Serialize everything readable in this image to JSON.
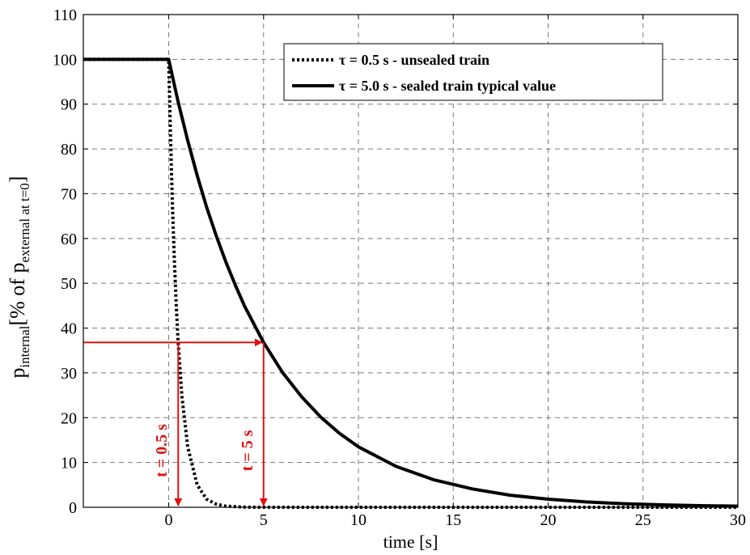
{
  "chart_data": {
    "type": "line",
    "xlabel": "time [s]",
    "ylabel": {
      "main": "p",
      "main_sub": "internal",
      "bracket": "[% of p",
      "bracket_sub": "external at t=0",
      "close": "]"
    },
    "xlim": [
      -4.5,
      30
    ],
    "ylim": [
      0,
      110
    ],
    "xticks": [
      0,
      5,
      10,
      15,
      20,
      25,
      30
    ],
    "yticks": [
      0,
      10,
      20,
      30,
      40,
      50,
      60,
      70,
      80,
      90,
      100,
      110
    ],
    "grid": true,
    "legend_position": "top-right",
    "series": [
      {
        "name": "τ = 0.5 s - unsealed train",
        "style": "dotted",
        "color": "#000000",
        "x": [
          -4.5,
          0,
          0.1,
          0.2,
          0.3,
          0.4,
          0.5,
          0.7,
          1.0,
          1.5,
          2.0,
          2.5,
          3.0,
          4.0,
          5.0,
          10.0,
          20.0,
          30.0
        ],
        "y": [
          100,
          100,
          81.9,
          67.0,
          54.9,
          44.9,
          36.8,
          24.7,
          13.5,
          5.0,
          1.8,
          0.7,
          0.25,
          0.03,
          0,
          0,
          0,
          0
        ]
      },
      {
        "name": "τ = 5.0 s - sealed train typical value",
        "style": "solid",
        "color": "#000000",
        "x": [
          -4.5,
          0,
          0.5,
          1,
          1.5,
          2,
          2.5,
          3,
          3.5,
          4,
          5,
          6,
          7,
          8,
          9,
          10,
          12,
          14,
          16,
          18,
          20,
          22,
          24,
          26,
          28,
          30
        ],
        "y": [
          100,
          100,
          90.5,
          81.9,
          74.1,
          67.0,
          60.7,
          54.9,
          49.7,
          44.9,
          36.8,
          30.1,
          24.7,
          20.2,
          16.5,
          13.5,
          9.1,
          6.1,
          4.1,
          2.7,
          1.8,
          1.2,
          0.8,
          0.55,
          0.37,
          0.25
        ]
      }
    ],
    "annotations": [
      {
        "text": "t = 0.5 s",
        "x": 0.5,
        "y_level": 36.8,
        "color": "#e01010"
      },
      {
        "text": "t = 5 s",
        "x": 5,
        "y_level": 36.8,
        "color": "#e01010"
      }
    ],
    "reference_line": {
      "y": 36.8,
      "x_from": -4.5,
      "x_to": 5,
      "color": "#e01010"
    }
  }
}
